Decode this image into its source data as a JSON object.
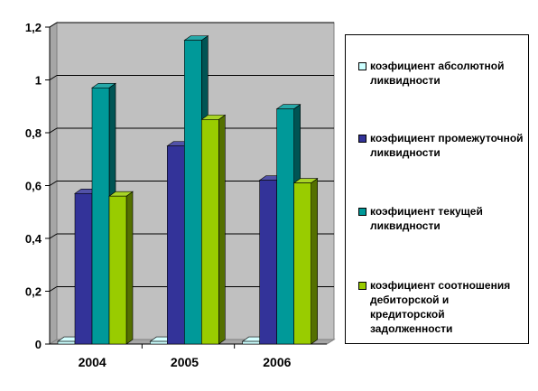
{
  "chart_data": {
    "type": "bar",
    "title": "",
    "xlabel": "",
    "ylabel": "",
    "categories": [
      "2004",
      "2005",
      "2006"
    ],
    "ylim": [
      0,
      1.2
    ],
    "yticks": [
      "0",
      "0,2",
      "0,4",
      "0,6",
      "0,8",
      "1",
      "1,2"
    ],
    "grid": true,
    "legend_position": "right",
    "series": [
      {
        "name": "коэфициент абсолютной ликвидности",
        "values": [
          0.01,
          0.01,
          0.01
        ],
        "color": "#CCFFFF"
      },
      {
        "name": "коэфициент промежуточной ликвидности",
        "values": [
          0.57,
          0.75,
          0.62
        ],
        "color": "#333399"
      },
      {
        "name": "коэфициент текущей ликвидности",
        "values": [
          0.97,
          1.15,
          0.89
        ],
        "color": "#009999"
      },
      {
        "name": "коэфициент соотношения дебиторской и кредиторской задолженности",
        "values": [
          0.56,
          0.85,
          0.61
        ],
        "color": "#99CC00"
      }
    ]
  }
}
